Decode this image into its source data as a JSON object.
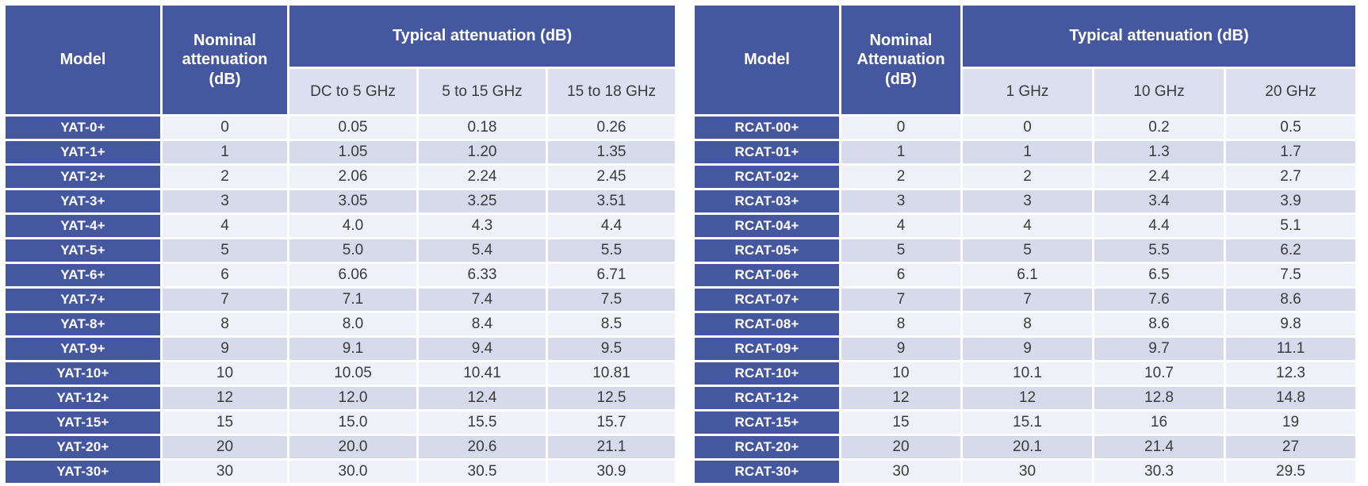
{
  "colors": {
    "header_blue": "#45579E",
    "row_light": "#F0F1F8",
    "row_dark": "#D6DAEB",
    "subheader_bg": "#DCDFEF",
    "body_text": "#3B3B3B",
    "header_text": "#FFFFFF",
    "page_background": "#FFFFFF"
  },
  "tables": [
    {
      "id": "yat",
      "header": {
        "model": "Model",
        "nominal": "Nominal\nattenuation\n(dB)",
        "typical": "Typical attenuation (dB)",
        "sub_columns": [
          "DC to 5 GHz",
          "5 to 15 GHz",
          "15 to 18 GHz"
        ]
      },
      "rows": [
        {
          "model": "YAT-0+",
          "nominal": "0",
          "typical": [
            "0.05",
            "0.18",
            "0.26"
          ]
        },
        {
          "model": "YAT-1+",
          "nominal": "1",
          "typical": [
            "1.05",
            "1.20",
            "1.35"
          ]
        },
        {
          "model": "YAT-2+",
          "nominal": "2",
          "typical": [
            "2.06",
            "2.24",
            "2.45"
          ]
        },
        {
          "model": "YAT-3+",
          "nominal": "3",
          "typical": [
            "3.05",
            "3.25",
            "3.51"
          ]
        },
        {
          "model": "YAT-4+",
          "nominal": "4",
          "typical": [
            "4.0",
            "4.3",
            "4.4"
          ]
        },
        {
          "model": "YAT-5+",
          "nominal": "5",
          "typical": [
            "5.0",
            "5.4",
            "5.5"
          ]
        },
        {
          "model": "YAT-6+",
          "nominal": "6",
          "typical": [
            "6.06",
            "6.33",
            "6.71"
          ]
        },
        {
          "model": "YAT-7+",
          "nominal": "7",
          "typical": [
            "7.1",
            "7.4",
            "7.5"
          ]
        },
        {
          "model": "YAT-8+",
          "nominal": "8",
          "typical": [
            "8.0",
            "8.4",
            "8.5"
          ]
        },
        {
          "model": "YAT-9+",
          "nominal": "9",
          "typical": [
            "9.1",
            "9.4",
            "9.5"
          ]
        },
        {
          "model": "YAT-10+",
          "nominal": "10",
          "typical": [
            "10.05",
            "10.41",
            "10.81"
          ]
        },
        {
          "model": "YAT-12+",
          "nominal": "12",
          "typical": [
            "12.0",
            "12.4",
            "12.5"
          ]
        },
        {
          "model": "YAT-15+",
          "nominal": "15",
          "typical": [
            "15.0",
            "15.5",
            "15.7"
          ]
        },
        {
          "model": "YAT-20+",
          "nominal": "20",
          "typical": [
            "20.0",
            "20.6",
            "21.1"
          ]
        },
        {
          "model": "YAT-30+",
          "nominal": "30",
          "typical": [
            "30.0",
            "30.5",
            "30.9"
          ]
        }
      ]
    },
    {
      "id": "rcat",
      "header": {
        "model": "Model",
        "nominal": "Nominal\nAttenuation\n(dB)",
        "typical": "Typical attenuation (dB)",
        "sub_columns": [
          "1 GHz",
          "10 GHz",
          "20 GHz"
        ]
      },
      "rows": [
        {
          "model": "RCAT-00+",
          "nominal": "0",
          "typical": [
            "0",
            "0.2",
            "0.5"
          ]
        },
        {
          "model": "RCAT-01+",
          "nominal": "1",
          "typical": [
            "1",
            "1.3",
            "1.7"
          ]
        },
        {
          "model": "RCAT-02+",
          "nominal": "2",
          "typical": [
            "2",
            "2.4",
            "2.7"
          ]
        },
        {
          "model": "RCAT-03+",
          "nominal": "3",
          "typical": [
            "3",
            "3.4",
            "3.9"
          ]
        },
        {
          "model": "RCAT-04+",
          "nominal": "4",
          "typical": [
            "4",
            "4.4",
            "5.1"
          ]
        },
        {
          "model": "RCAT-05+",
          "nominal": "5",
          "typical": [
            "5",
            "5.5",
            "6.2"
          ]
        },
        {
          "model": "RCAT-06+",
          "nominal": "6",
          "typical": [
            "6.1",
            "6.5",
            "7.5"
          ]
        },
        {
          "model": "RCAT-07+",
          "nominal": "7",
          "typical": [
            "7",
            "7.6",
            "8.6"
          ]
        },
        {
          "model": "RCAT-08+",
          "nominal": "8",
          "typical": [
            "8",
            "8.6",
            "9.8"
          ]
        },
        {
          "model": "RCAT-09+",
          "nominal": "9",
          "typical": [
            "9",
            "9.7",
            "11.1"
          ]
        },
        {
          "model": "RCAT-10+",
          "nominal": "10",
          "typical": [
            "10.1",
            "10.7",
            "12.3"
          ]
        },
        {
          "model": "RCAT-12+",
          "nominal": "12",
          "typical": [
            "12",
            "12.8",
            "14.8"
          ]
        },
        {
          "model": "RCAT-15+",
          "nominal": "15",
          "typical": [
            "15.1",
            "16",
            "19"
          ]
        },
        {
          "model": "RCAT-20+",
          "nominal": "20",
          "typical": [
            "20.1",
            "21.4",
            "27"
          ]
        },
        {
          "model": "RCAT-30+",
          "nominal": "30",
          "typical": [
            "30",
            "30.3",
            "29.5"
          ]
        }
      ]
    }
  ]
}
